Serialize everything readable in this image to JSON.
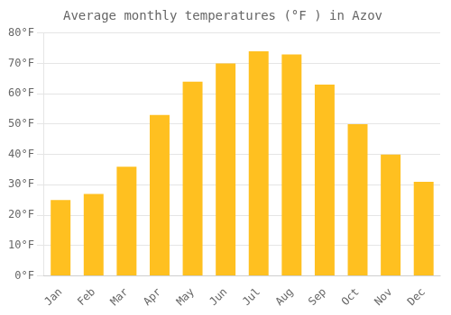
{
  "chart_data": {
    "type": "bar",
    "title": "Average monthly temperatures (°F ) in Azov",
    "categories": [
      "Jan",
      "Feb",
      "Mar",
      "Apr",
      "May",
      "Jun",
      "Jul",
      "Aug",
      "Sep",
      "Oct",
      "Nov",
      "Dec"
    ],
    "values": [
      25,
      27,
      36,
      53,
      64,
      70,
      74,
      73,
      63,
      50,
      40,
      31
    ],
    "color": "#FFC020",
    "ylim": [
      0,
      80
    ],
    "yticks": [
      {
        "value": 0,
        "label": "0°F"
      },
      {
        "value": 10,
        "label": "10°F"
      },
      {
        "value": 20,
        "label": "20°F"
      },
      {
        "value": 30,
        "label": "30°F"
      },
      {
        "value": 40,
        "label": "40°F"
      },
      {
        "value": 50,
        "label": "50°F"
      },
      {
        "value": 60,
        "label": "60°F"
      },
      {
        "value": 70,
        "label": "70°F"
      },
      {
        "value": 80,
        "label": "80°F"
      }
    ],
    "grid": true
  }
}
